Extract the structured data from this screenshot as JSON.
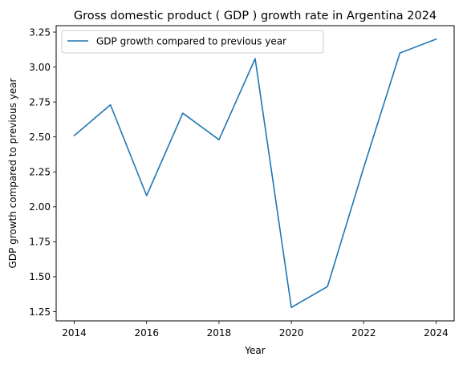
{
  "chart_data": {
    "type": "line",
    "title": "Gross domestic product ( GDP ) growth rate in Argentina 2024",
    "xlabel": "Year",
    "ylabel": "GDP growth compared to previous year",
    "x": [
      2014,
      2015,
      2016,
      2017,
      2018,
      2019,
      2020,
      2021,
      2022,
      2023,
      2024
    ],
    "series": [
      {
        "name": "GDP growth compared to previous year",
        "color": "#1f77b4",
        "values": [
          2.51,
          2.73,
          2.08,
          2.67,
          2.48,
          3.06,
          1.28,
          1.43,
          2.28,
          3.1,
          3.2
        ]
      }
    ],
    "x_ticks": [
      "2014",
      "2016",
      "2018",
      "2020",
      "2022",
      "2024"
    ],
    "y_ticks": [
      "1.25",
      "1.50",
      "1.75",
      "2.00",
      "2.25",
      "2.50",
      "2.75",
      "3.00",
      "3.25"
    ],
    "xlim": [
      2013.5,
      2024.5
    ],
    "ylim": [
      1.184,
      3.296
    ],
    "grid": false,
    "legend_position": "upper-left"
  }
}
